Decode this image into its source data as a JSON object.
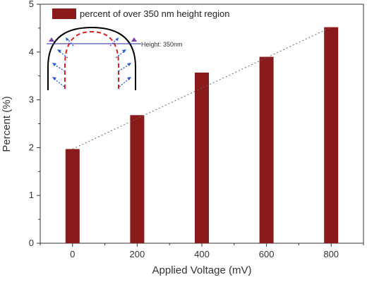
{
  "chart_data": {
    "type": "bar",
    "xlabel": "Applied Voltage (mV)",
    "ylabel": "Percent (%)",
    "categories": [
      "0",
      "200",
      "400",
      "600",
      "800"
    ],
    "x": [
      0,
      200,
      400,
      600,
      800
    ],
    "series": [
      {
        "name": "percent of over 350 nm height region",
        "values": [
          1.97,
          2.68,
          3.57,
          3.9,
          4.52
        ],
        "color": "#8b1a1a"
      }
    ],
    "trend_line": {
      "style": "dotted",
      "from": [
        0,
        1.97
      ],
      "to": [
        800,
        4.52
      ]
    },
    "xlim": [
      -100,
      900
    ],
    "ylim": [
      0,
      5
    ],
    "yticks": [
      "0",
      "1",
      "2",
      "3",
      "4",
      "5"
    ],
    "legend_position": "top-left",
    "grid": false,
    "inset": {
      "label": "Height: 350nm",
      "description_colors": {
        "outer_arc": "#000000",
        "inner_arc": "#dd2222",
        "arrows": "#2a5bd7",
        "markers": "#7a3fa8"
      }
    }
  }
}
